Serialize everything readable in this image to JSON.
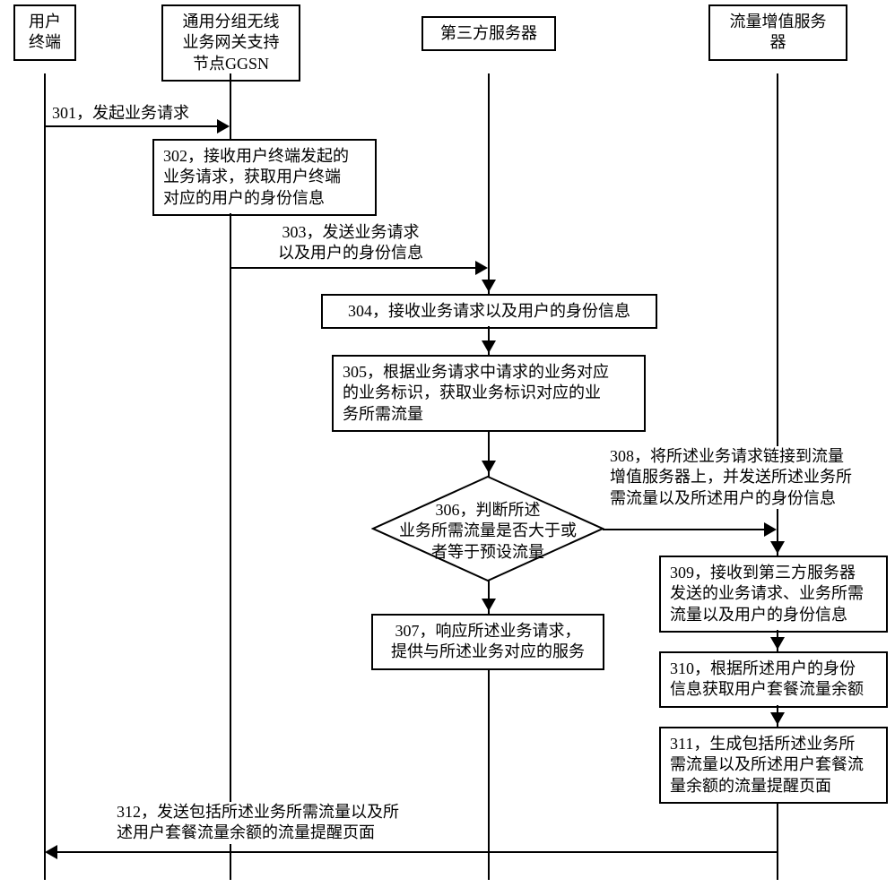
{
  "participants": {
    "p1": "用户\n终端",
    "p2": "通用分组无线\n业务网关支持\n节点GGSN",
    "p3": "第三方服务器",
    "p4": "流量增值服务\n器"
  },
  "messages": {
    "m301": "301，发起业务请求",
    "m303": "303，发送业务请求\n以及用户的身份信息",
    "m308": "308，将所述业务请求链接到流量\n增值服务器上，并发送所述业务所\n需流量以及所述用户的身份信息",
    "m312": "312，发送包括所述业务所需流量以及所\n述用户套餐流量余额的流量提醒页面"
  },
  "boxes": {
    "b302": "302，接收用户终端发起的\n业务请求，获取用户终端\n对应的用户的身份信息",
    "b304": "304，接收业务请求以及用户的身份信息",
    "b305": "305，根据业务请求中请求的业务对应\n的业务标识，获取业务标识对应的业\n务所需流量",
    "b306": "306，判断所述\n业务所需流量是否大于或\n者等于预设流量",
    "b307": "307，响应所述业务请求，\n提供与所述业务对应的服务",
    "b309": "309，接收到第三方服务器\n发送的业务请求、业务所需\n流量以及用户的身份信息",
    "b310": "310，根据所述用户的身份\n信息获取用户套餐流量余额",
    "b311": "311，生成包括所述业务所\n需流量以及所述用户套餐流\n量余额的流量提醒页面"
  },
  "colors": {
    "line": "#000000",
    "bg": "#ffffff"
  }
}
